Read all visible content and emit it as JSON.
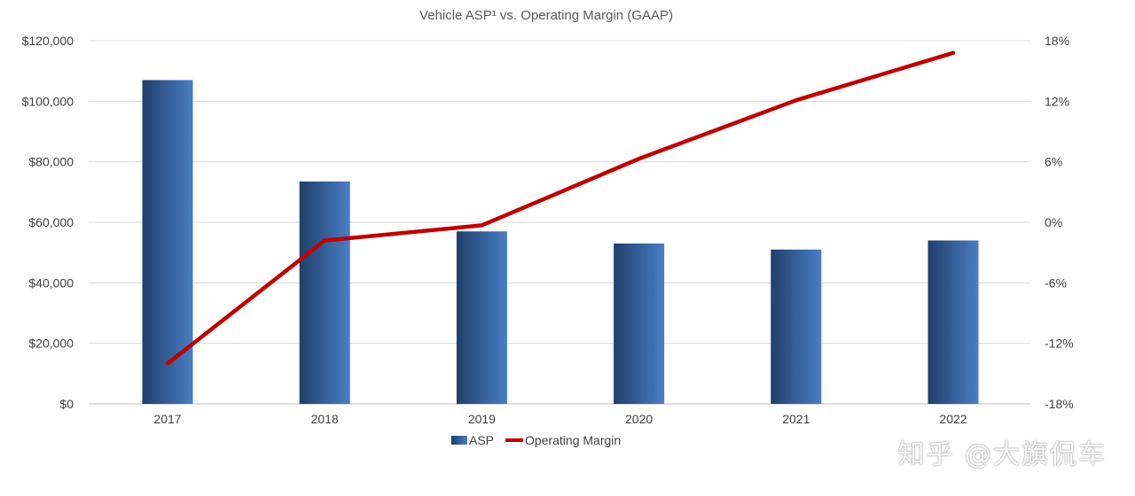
{
  "chart_data": {
    "type": "bar+line",
    "title": "Vehicle ASP¹ vs. Operating Margin (GAAP)",
    "categories": [
      "2017",
      "2018",
      "2019",
      "2020",
      "2021",
      "2022"
    ],
    "series": [
      {
        "name": "ASP",
        "type": "bar",
        "axis": "left",
        "values": [
          107000,
          73500,
          57000,
          53000,
          51000,
          54000
        ],
        "color_dark": "#1f3f6b",
        "color_light": "#4a7ec4"
      },
      {
        "name": "Operating Margin",
        "type": "line",
        "axis": "right",
        "values": [
          -14.0,
          -1.8,
          -0.3,
          6.3,
          12.1,
          16.8
        ],
        "color": "#c00000"
      }
    ],
    "left_axis": {
      "min": 0,
      "max": 120000,
      "step": 20000,
      "tick_labels": [
        "$0",
        "$20,000",
        "$40,000",
        "$60,000",
        "$80,000",
        "$100,000",
        "$120,000"
      ]
    },
    "right_axis": {
      "min": -18,
      "max": 18,
      "step": 6,
      "tick_labels": [
        "-18%",
        "-12%",
        "-6%",
        "0%",
        "6%",
        "12%",
        "18%"
      ]
    },
    "legend": {
      "position": "bottom-center",
      "items": [
        "ASP",
        "Operating Margin"
      ]
    },
    "grid": true
  },
  "watermark": "知乎 @大旗侃车"
}
